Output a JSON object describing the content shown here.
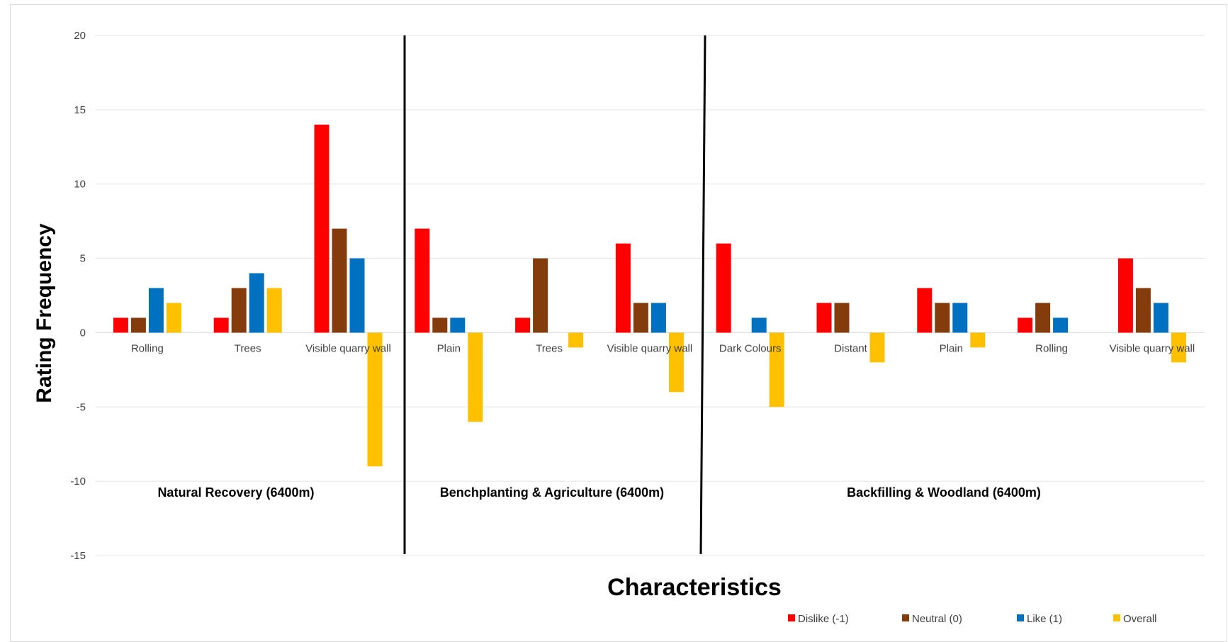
{
  "chart_data": {
    "type": "bar",
    "title": "",
    "xlabel": "Characteristics",
    "ylabel": "Rating Frequency",
    "ylim": [
      -15,
      20
    ],
    "yticks": [
      20,
      15,
      10,
      5,
      0,
      -5,
      -10,
      -15
    ],
    "grid": true,
    "legend_position": "bottom-right",
    "groups": [
      {
        "label": "Natural Recovery (6400m)",
        "categories": [
          "Rolling",
          "Trees",
          "Visible quarry wall"
        ]
      },
      {
        "label": "Benchplanting & Agriculture (6400m)",
        "categories": [
          "Plain",
          "Trees",
          "Visible quarry wall"
        ]
      },
      {
        "label": "Backfilling & Woodland (6400m)",
        "categories": [
          "Dark Colours",
          "Distant",
          "Plain",
          "Rolling",
          "Visible quarry wall"
        ]
      }
    ],
    "categories": [
      "Rolling",
      "Trees",
      "Visible quarry wall",
      "Plain",
      "Trees",
      "Visible quarry wall",
      "Dark Colours",
      "Distant",
      "Plain",
      "Rolling",
      "Visible quarry wall"
    ],
    "series": [
      {
        "name": "Dislike (-1)",
        "color": "#ff0000",
        "values": [
          1,
          1,
          14,
          7,
          1,
          6,
          6,
          2,
          3,
          1,
          5
        ]
      },
      {
        "name": "Neutral (0)",
        "color": "#843c0c",
        "values": [
          1,
          3,
          7,
          1,
          5,
          2,
          0,
          2,
          2,
          2,
          3
        ]
      },
      {
        "name": "Like (1)",
        "color": "#0070c0",
        "values": [
          3,
          4,
          5,
          1,
          0,
          2,
          1,
          0,
          2,
          1,
          2
        ]
      },
      {
        "name": "Overall",
        "color": "#ffc000",
        "values": [
          2,
          3,
          -9,
          -6,
          -1,
          -4,
          -5,
          -2,
          -1,
          0,
          -2
        ]
      }
    ]
  }
}
